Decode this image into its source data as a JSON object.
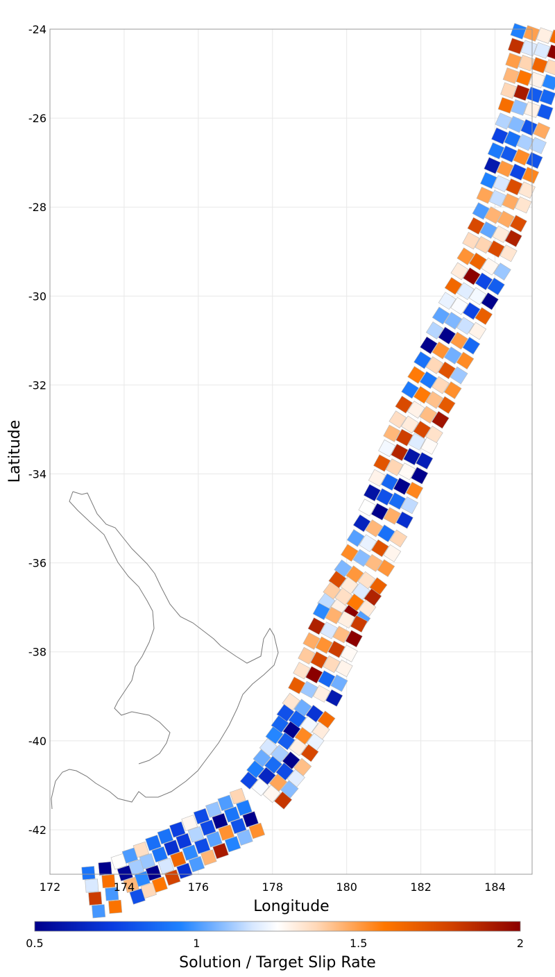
{
  "chart_data": {
    "type": "heatmap",
    "subtype": "fault-subsection map",
    "title": "",
    "xlabel": "Longitude",
    "ylabel": "Latitude",
    "xlim": [
      172,
      185
    ],
    "ylim": [
      -43,
      -24
    ],
    "xticks": [
      "172",
      "174",
      "176",
      "178",
      "180",
      "182",
      "184"
    ],
    "yticks": [
      "-24",
      "-26",
      "-28",
      "-30",
      "-32",
      "-34",
      "-36",
      "-38",
      "-40",
      "-42"
    ],
    "grid": true,
    "colorbar": {
      "title": "Solution / Target Slip Rate",
      "ticks": [
        "0.5",
        "1",
        "1.5",
        "2"
      ],
      "range": [
        0.5,
        2
      ],
      "colors": {
        "low": "#00008b",
        "mid_low": "#1e6eff",
        "mid": "#ffffff",
        "mid_high": "#ff7700",
        "high": "#8b0000"
      },
      "placement": "bottom"
    },
    "subduction_trace": [
      [
        184.3,
        -24.0
      ],
      [
        184.1,
        -25.0
      ],
      [
        183.9,
        -26.0
      ],
      [
        183.6,
        -27.0
      ],
      [
        183.3,
        -28.0
      ],
      [
        182.9,
        -29.0
      ],
      [
        182.4,
        -30.0
      ],
      [
        181.9,
        -31.0
      ],
      [
        181.4,
        -32.0
      ],
      [
        180.9,
        -33.0
      ],
      [
        180.5,
        -34.0
      ],
      [
        180.1,
        -35.0
      ],
      [
        179.6,
        -36.0
      ],
      [
        179.0,
        -37.0
      ],
      [
        178.6,
        -38.0
      ],
      [
        178.2,
        -39.0
      ],
      [
        177.6,
        -40.0
      ],
      [
        176.9,
        -41.0
      ],
      [
        175.6,
        -41.6
      ],
      [
        174.3,
        -42.2
      ],
      [
        173.4,
        -42.6
      ],
      [
        172.5,
        -42.8
      ]
    ],
    "subsection_ratios_sample": [
      0.8,
      1.1,
      0.9,
      1.0,
      1.2,
      0.7,
      1.4,
      0.95,
      1.05,
      0.85,
      1.3,
      2.0,
      0.55,
      1.8,
      1.6,
      0.75
    ]
  },
  "icons": {
    "coastline": "new-zealand-north-island-outline"
  }
}
